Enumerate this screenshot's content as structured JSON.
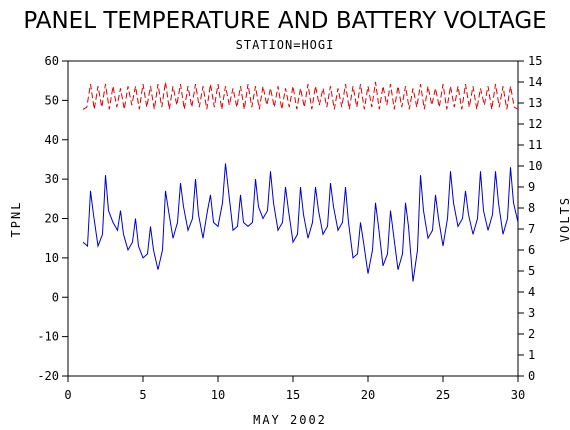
{
  "chart_data": {
    "type": "line",
    "title": "PANEL TEMPERATURE AND BATTERY VOLTAGE",
    "subtitle": "STATION=HOGI",
    "xlabel": "MAY 2002",
    "ylabel_left": "TPNL",
    "ylabel_right": "VOLTS",
    "xlim": [
      0,
      30
    ],
    "ylim_left": [
      -20,
      60
    ],
    "ylim_right": [
      0,
      15
    ],
    "x_ticks": [
      0,
      5,
      10,
      15,
      20,
      25,
      30
    ],
    "y_left_ticks": [
      -20,
      -10,
      0,
      10,
      20,
      30,
      40,
      50,
      60
    ],
    "y_right_ticks": [
      0,
      1,
      2,
      3,
      4,
      5,
      6,
      7,
      8,
      9,
      10,
      11,
      12,
      13,
      14,
      15
    ],
    "grid": false,
    "colors": {
      "temperature": "#0000cc",
      "voltage": "#dd0000"
    },
    "series": [
      {
        "axis": "left",
        "style": "solid",
        "x": [
          1.0,
          1.3,
          1.5,
          1.7,
          2.0,
          2.3,
          2.5,
          2.7,
          3.0,
          3.3,
          3.5,
          3.7,
          4.0,
          4.3,
          4.5,
          4.7,
          5.0,
          5.3,
          5.5,
          5.7,
          6.0,
          6.3,
          6.5,
          6.7,
          7.0,
          7.3,
          7.5,
          7.7,
          8.0,
          8.3,
          8.5,
          8.7,
          9.0,
          9.3,
          9.5,
          9.7,
          10.0,
          10.3,
          10.5,
          10.7,
          11.0,
          11.3,
          11.5,
          11.7,
          12.0,
          12.3,
          12.5,
          12.7,
          13.0,
          13.3,
          13.5,
          13.7,
          14.0,
          14.3,
          14.5,
          14.7,
          15.0,
          15.3,
          15.5,
          15.7,
          16.0,
          16.3,
          16.5,
          16.7,
          17.0,
          17.3,
          17.5,
          17.7,
          18.0,
          18.3,
          18.5,
          18.7,
          19.0,
          19.3,
          19.5,
          19.7,
          20.0,
          20.3,
          20.5,
          20.7,
          21.0,
          21.3,
          21.5,
          21.7,
          22.0,
          22.3,
          22.5,
          22.7,
          23.0,
          23.3,
          23.5,
          23.7,
          24.0,
          24.3,
          24.5,
          24.7,
          25.0,
          25.3,
          25.5,
          25.7,
          26.0,
          26.3,
          26.5,
          26.7,
          27.0,
          27.3,
          27.5,
          27.7,
          28.0,
          28.3,
          28.5,
          28.7,
          29.0,
          29.3,
          29.5,
          29.7,
          30.0
        ],
        "values": [
          14,
          13,
          27,
          21,
          13,
          16,
          31,
          22,
          19,
          17,
          22,
          16,
          12,
          14,
          20,
          13,
          10,
          11,
          18,
          12,
          7,
          12,
          27,
          22,
          15,
          19,
          29,
          23,
          17,
          20,
          30,
          21,
          15,
          22,
          26,
          19,
          18,
          24,
          34,
          27,
          17,
          18,
          26,
          19,
          18,
          19,
          30,
          23,
          20,
          22,
          32,
          24,
          17,
          19,
          28,
          22,
          14,
          16,
          28,
          21,
          15,
          19,
          28,
          22,
          16,
          18,
          29,
          23,
          17,
          19,
          28,
          19,
          10,
          11,
          19,
          14,
          6,
          12,
          24,
          18,
          8,
          11,
          22,
          16,
          7,
          11,
          24,
          18,
          4,
          12,
          31,
          22,
          15,
          17,
          26,
          20,
          13,
          20,
          32,
          24,
          18,
          20,
          27,
          21,
          16,
          20,
          32,
          22,
          17,
          21,
          32,
          24,
          16,
          20,
          33,
          24,
          19
        ]
      },
      {
        "axis": "right",
        "style": "dashed",
        "x": [
          1.0,
          1.25,
          1.5,
          1.75,
          2.0,
          2.25,
          2.5,
          2.75,
          3.0,
          3.25,
          3.5,
          3.75,
          4.0,
          4.25,
          4.5,
          4.75,
          5.0,
          5.25,
          5.5,
          5.75,
          6.0,
          6.25,
          6.5,
          6.75,
          7.0,
          7.25,
          7.5,
          7.75,
          8.0,
          8.25,
          8.5,
          8.75,
          9.0,
          9.25,
          9.5,
          9.75,
          10.0,
          10.25,
          10.5,
          10.75,
          11.0,
          11.25,
          11.5,
          11.75,
          12.0,
          12.25,
          12.5,
          12.75,
          13.0,
          13.25,
          13.5,
          13.75,
          14.0,
          14.25,
          14.5,
          14.75,
          15.0,
          15.25,
          15.5,
          15.75,
          16.0,
          16.25,
          16.5,
          16.75,
          17.0,
          17.25,
          17.5,
          17.75,
          18.0,
          18.25,
          18.5,
          18.75,
          19.0,
          19.25,
          19.5,
          19.75,
          20.0,
          20.25,
          20.5,
          20.75,
          21.0,
          21.25,
          21.5,
          21.75,
          22.0,
          22.25,
          22.5,
          22.75,
          23.0,
          23.25,
          23.5,
          23.75,
          24.0,
          24.25,
          24.5,
          24.75,
          25.0,
          25.25,
          25.5,
          25.75,
          26.0,
          26.25,
          26.5,
          26.75,
          27.0,
          27.25,
          27.5,
          27.75,
          28.0,
          28.25,
          28.5,
          28.75,
          29.0,
          29.25,
          29.5,
          29.75,
          30.0
        ],
        "values": [
          12.7,
          12.8,
          13.9,
          12.7,
          13.8,
          12.8,
          13.9,
          12.7,
          13.8,
          12.8,
          13.7,
          12.7,
          13.8,
          12.9,
          13.8,
          12.7,
          13.9,
          12.8,
          13.8,
          12.7,
          13.9,
          12.8,
          14.0,
          12.7,
          13.8,
          12.9,
          13.9,
          12.7,
          13.8,
          12.8,
          13.9,
          12.8,
          13.8,
          12.7,
          13.9,
          12.8,
          13.9,
          12.7,
          13.8,
          12.9,
          13.7,
          12.8,
          13.8,
          12.7,
          13.9,
          12.8,
          13.8,
          12.7,
          13.8,
          12.9,
          13.7,
          12.8,
          13.8,
          12.7,
          13.7,
          12.8,
          13.8,
          12.7,
          13.7,
          12.8,
          13.9,
          12.7,
          13.8,
          12.9,
          13.7,
          12.8,
          13.8,
          12.7,
          13.7,
          12.8,
          13.9,
          12.7,
          13.8,
          12.8,
          13.9,
          12.7,
          13.8,
          12.8,
          14.0,
          12.7,
          13.8,
          12.9,
          13.9,
          12.7,
          13.8,
          12.8,
          13.8,
          12.7,
          13.7,
          12.8,
          13.9,
          12.7,
          13.8,
          12.9,
          13.7,
          12.8,
          13.9,
          12.7,
          13.8,
          12.8,
          13.8,
          12.7,
          13.9,
          12.8,
          13.8,
          12.7,
          13.7,
          12.9,
          13.8,
          12.7,
          13.9,
          12.8,
          13.8,
          12.7,
          13.8,
          12.8,
          12.7
        ]
      }
    ]
  }
}
